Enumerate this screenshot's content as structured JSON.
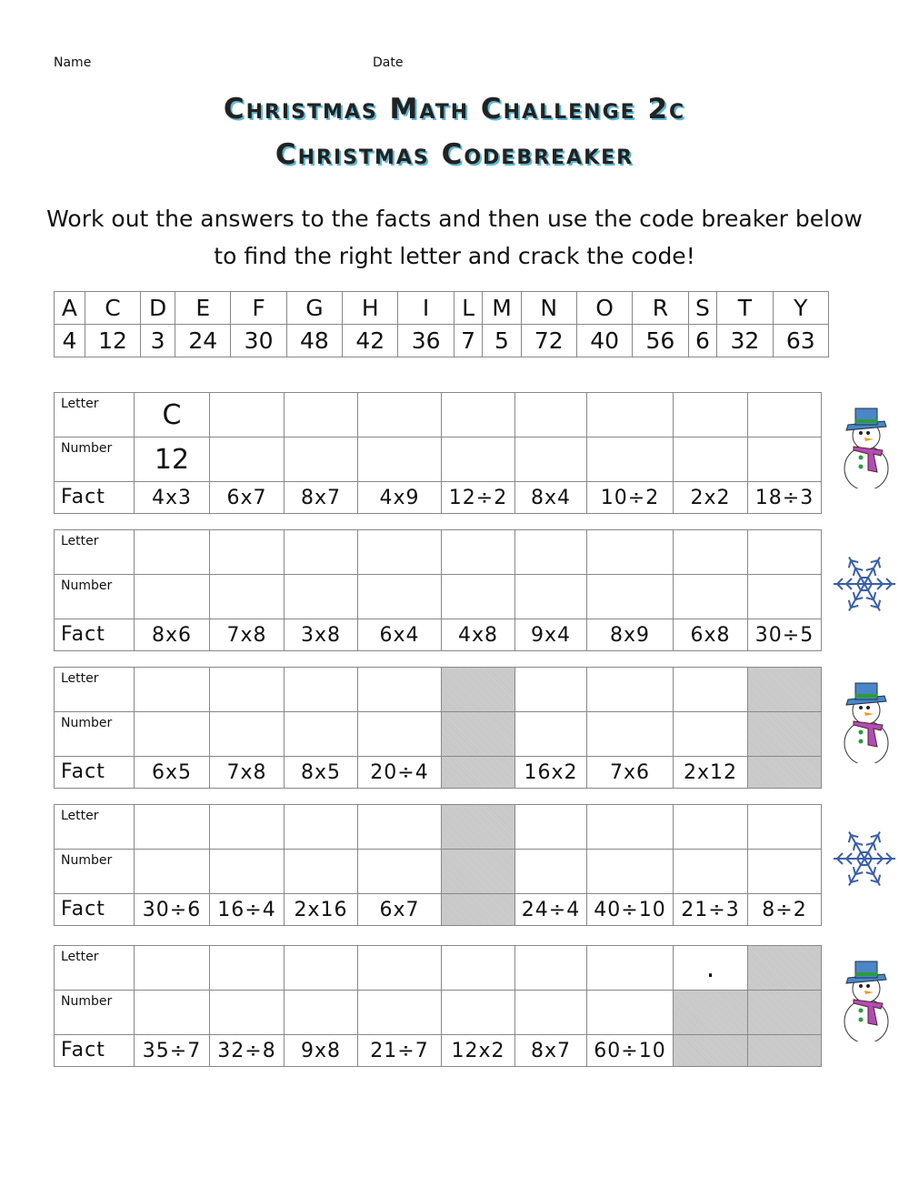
{
  "header": {
    "name_label": "Name",
    "date_label": "Date"
  },
  "title_line1": "Christmas Math Challenge 2c",
  "title_line2": "Christmas Codebreaker",
  "instructions_line1": "Work out the answers to the facts and then use the code breaker below",
  "instructions_line2": "to find the right letter and crack the code!",
  "code_breaker": {
    "letters": [
      "A",
      "C",
      "D",
      "E",
      "F",
      "G",
      "H",
      "I",
      "L",
      "M",
      "N",
      "O",
      "R",
      "S",
      "T",
      "Y"
    ],
    "numbers": [
      "4",
      "12",
      "3",
      "24",
      "30",
      "48",
      "42",
      "36",
      "7",
      "5",
      "72",
      "40",
      "56",
      "6",
      "32",
      "63"
    ]
  },
  "row_labels": {
    "letter": "Letter",
    "number": "Number",
    "fact": "Fact"
  },
  "puzzles": [
    {
      "decoration": "snowman-icon",
      "letters": [
        "C",
        "",
        "",
        "",
        "",
        "",
        "",
        "",
        ""
      ],
      "numbers": [
        "12",
        "",
        "",
        "",
        "",
        "",
        "",
        "",
        ""
      ],
      "facts": [
        "4x3",
        "6x7",
        "8x7",
        "4x9",
        "12÷2",
        "8x4",
        "10÷2",
        "2x2",
        "18÷3"
      ],
      "shaded": [
        [],
        [],
        []
      ]
    },
    {
      "decoration": "snowflake-icon",
      "letters": [
        "",
        "",
        "",
        "",
        "",
        "",
        "",
        "",
        ""
      ],
      "numbers": [
        "",
        "",
        "",
        "",
        "",
        "",
        "",
        "",
        ""
      ],
      "facts": [
        "8x6",
        "7x8",
        "3x8",
        "6x4",
        "4x8",
        "9x4",
        "8x9",
        "6x8",
        "30÷5"
      ],
      "shaded": [
        [],
        [],
        []
      ]
    },
    {
      "decoration": "snowman-icon",
      "letters": [
        "",
        "",
        "",
        "",
        "",
        "",
        "",
        "",
        ""
      ],
      "numbers": [
        "",
        "",
        "",
        "",
        "",
        "",
        "",
        "",
        ""
      ],
      "facts": [
        "6x5",
        "7x8",
        "8x5",
        "20÷4",
        "",
        "16x2",
        "7x6",
        "2x12",
        ""
      ],
      "shaded": [
        [
          4,
          8
        ],
        [
          4,
          8
        ],
        [
          4,
          8
        ]
      ]
    },
    {
      "decoration": "snowflake-icon",
      "letters": [
        "",
        "",
        "",
        "",
        "",
        "",
        "",
        "",
        ""
      ],
      "numbers": [
        "",
        "",
        "",
        "",
        "",
        "",
        "",
        "",
        ""
      ],
      "facts": [
        "30÷6",
        "16÷4",
        "2x16",
        "6x7",
        "",
        "24÷4",
        "40÷10",
        "21÷3",
        "8÷2"
      ],
      "shaded": [
        [
          4
        ],
        [
          4
        ],
        [
          4
        ]
      ]
    },
    {
      "decoration": "snowman-icon",
      "letters": [
        "",
        "",
        "",
        "",
        "",
        "",
        "",
        ".",
        ""
      ],
      "numbers": [
        "",
        "",
        "",
        "",
        "",
        "",
        "",
        "",
        ""
      ],
      "facts": [
        "35÷7",
        "32÷8",
        "9x8",
        "21÷7",
        "12x2",
        "8x7",
        "60÷10",
        "",
        ""
      ],
      "shaded": [
        [
          8
        ],
        [
          7,
          8
        ],
        [
          7,
          8
        ]
      ]
    }
  ]
}
